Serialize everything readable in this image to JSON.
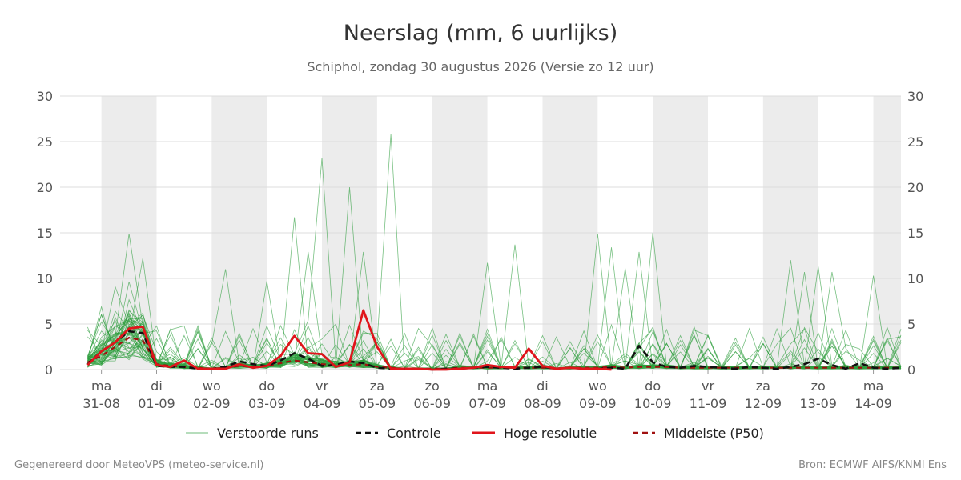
{
  "title": "Neerslag (mm, 6 uurlijks)",
  "subtitle": "Schiphol, zondag 30 augustus 2026 (Versie zo 12 uur)",
  "footer_left": "Gegenereerd door MeteoVPS (meteo-service.nl)",
  "footer_right": "Bron: ECMWF AIFS/KNMI Ens",
  "colors": {
    "ensemble": "#2e9e3e",
    "control": "#111111",
    "hires": "#e0141b",
    "median": "#a01010",
    "shade": "#ececec",
    "grid": "#dddddd"
  },
  "chart_data": {
    "type": "line",
    "x_unit": "days since 31-08 00h (6-hourly steps)",
    "ylim": [
      0,
      30
    ],
    "yticks": [
      0,
      5,
      10,
      15,
      20,
      25,
      30
    ],
    "xlim": [
      -0.75,
      14.5
    ],
    "x_ticks": [
      {
        "day": "ma",
        "date": "31-08"
      },
      {
        "day": "di",
        "date": "01-09"
      },
      {
        "day": "wo",
        "date": "02-09"
      },
      {
        "day": "do",
        "date": "03-09"
      },
      {
        "day": "vr",
        "date": "04-09"
      },
      {
        "day": "za",
        "date": "05-09"
      },
      {
        "day": "zo",
        "date": "06-09"
      },
      {
        "day": "ma",
        "date": "07-09"
      },
      {
        "day": "di",
        "date": "08-09"
      },
      {
        "day": "wo",
        "date": "09-09"
      },
      {
        "day": "do",
        "date": "10-09"
      },
      {
        "day": "vr",
        "date": "11-09"
      },
      {
        "day": "za",
        "date": "12-09"
      },
      {
        "day": "zo",
        "date": "13-09"
      },
      {
        "day": "ma",
        "date": "14-09"
      }
    ],
    "shaded_days": [
      0,
      2,
      4,
      6,
      8,
      10,
      12,
      14
    ],
    "legend": [
      {
        "key": "ensemble",
        "label": "Verstoorde runs",
        "style": "thin"
      },
      {
        "key": "control",
        "label": "Controle",
        "style": "dashed"
      },
      {
        "key": "hires",
        "label": "Hoge resolutie",
        "style": "solid"
      },
      {
        "key": "median",
        "label": "Middelste (P50)",
        "style": "dashed"
      }
    ],
    "series": [
      {
        "name": "Hoge resolutie",
        "key": "hires",
        "x": [
          -0.25,
          0.0,
          0.25,
          0.5,
          0.75,
          1.0,
          1.25,
          1.5,
          1.75,
          2.0,
          2.25,
          2.5,
          2.75,
          3.0,
          3.25,
          3.5,
          3.75,
          4.0,
          4.25,
          4.5,
          4.75,
          5.0,
          5.25,
          5.5
        ],
        "y": [
          0.5,
          2.0,
          3.0,
          4.5,
          4.7,
          0.5,
          0.3,
          1.0,
          0.1,
          0.1,
          0.1,
          0.6,
          0.2,
          0.4,
          1.5,
          3.7,
          1.8,
          1.7,
          0.3,
          0.8,
          6.5,
          2.5,
          0.1,
          0.1
        ]
      },
      {
        "name": "Hoge resolutie (vervolg)",
        "key": "hires",
        "x": [
          5.5,
          5.75,
          6.0,
          6.25,
          6.5,
          6.75,
          7.0,
          7.25,
          7.5,
          7.75,
          8.0,
          8.25,
          8.5,
          8.75,
          9.0,
          9.25
        ],
        "y": [
          0.1,
          0.1,
          0.0,
          0.0,
          0.1,
          0.2,
          0.5,
          0.3,
          0.2,
          2.3,
          0.4,
          0.1,
          0.2,
          0.1,
          0.1,
          0.0
        ]
      },
      {
        "name": "Controle",
        "key": "control",
        "x": [
          -0.25,
          0.0,
          0.25,
          0.5,
          0.75,
          1.0,
          1.25,
          1.5,
          1.75,
          2.0,
          2.25,
          2.5,
          2.75,
          3.0,
          3.25,
          3.5,
          3.75,
          4.0,
          4.25,
          4.5,
          4.75,
          5.0,
          5.25,
          5.5,
          5.75,
          6.0,
          6.25,
          6.5,
          6.75,
          7.0,
          7.25,
          7.5,
          7.75,
          8.0,
          8.25,
          8.5,
          8.75,
          9.0,
          9.25,
          9.5,
          9.75,
          10.0,
          10.25,
          10.5,
          10.75,
          11.0,
          11.25,
          11.5,
          11.75,
          12.0,
          12.25,
          12.5,
          12.75,
          13.0,
          13.25,
          13.5,
          13.75,
          14.0,
          14.25,
          14.5
        ],
        "y": [
          0.6,
          2.0,
          3.0,
          4.2,
          4.0,
          0.4,
          0.3,
          0.3,
          0.1,
          0.1,
          0.3,
          0.9,
          0.6,
          0.4,
          1.0,
          1.8,
          1.2,
          0.4,
          0.5,
          0.9,
          0.7,
          0.2,
          0.1,
          0.1,
          0.1,
          0.0,
          0.1,
          0.1,
          0.2,
          0.3,
          0.2,
          0.1,
          0.2,
          0.3,
          0.1,
          0.2,
          0.1,
          0.1,
          0.2,
          0.1,
          2.6,
          0.8,
          0.3,
          0.2,
          0.4,
          0.3,
          0.2,
          0.1,
          0.3,
          0.2,
          0.1,
          0.3,
          0.6,
          1.2,
          0.5,
          0.1,
          0.7,
          0.2,
          0.1,
          0.2
        ]
      },
      {
        "name": "Middelste (P50)",
        "key": "median",
        "x": [
          -0.25,
          0.0,
          0.25,
          0.5,
          0.75,
          1.0,
          1.25,
          1.5,
          1.75,
          2.0,
          2.25,
          2.5,
          2.75,
          3.0,
          3.25,
          3.5,
          3.75,
          4.0,
          4.25,
          4.5,
          4.75,
          5.0,
          5.25,
          5.5,
          5.75,
          6.0,
          6.25,
          6.5,
          6.75,
          7.0,
          7.25,
          7.5,
          7.75,
          8.0,
          8.25,
          8.5,
          8.75,
          9.0,
          9.25,
          9.5,
          9.75,
          10.0,
          10.25,
          10.5,
          10.75,
          11.0,
          11.25,
          11.5,
          11.75,
          12.0,
          12.25,
          12.5,
          12.75,
          13.0,
          13.25,
          13.5,
          13.75,
          14.0,
          14.25,
          14.5
        ],
        "y": [
          0.8,
          1.5,
          2.5,
          3.5,
          3.2,
          0.6,
          0.4,
          0.3,
          0.2,
          0.1,
          0.2,
          0.4,
          0.3,
          0.4,
          0.7,
          1.0,
          0.8,
          0.6,
          0.5,
          0.5,
          0.6,
          0.3,
          0.2,
          0.1,
          0.1,
          0.1,
          0.1,
          0.2,
          0.2,
          0.2,
          0.2,
          0.2,
          0.2,
          0.2,
          0.1,
          0.2,
          0.2,
          0.2,
          0.3,
          0.2,
          0.3,
          0.3,
          0.3,
          0.2,
          0.2,
          0.2,
          0.2,
          0.2,
          0.2,
          0.2,
          0.2,
          0.2,
          0.2,
          0.2,
          0.2,
          0.2,
          0.2,
          0.2,
          0.2,
          0.2
        ]
      }
    ],
    "ensemble": {
      "name": "Verstoorde runs",
      "x_start": -0.25,
      "x_step": 0.25,
      "peaks": [
        {
          "x": 0.5,
          "y": 14.9
        },
        {
          "x": 0.75,
          "y": 12.2
        },
        {
          "x": 2.25,
          "y": 11.0
        },
        {
          "x": 3.0,
          "y": 9.7
        },
        {
          "x": 3.5,
          "y": 16.7
        },
        {
          "x": 3.75,
          "y": 12.9
        },
        {
          "x": 4.0,
          "y": 23.2
        },
        {
          "x": 4.5,
          "y": 20.0
        },
        {
          "x": 4.75,
          "y": 12.9
        },
        {
          "x": 5.25,
          "y": 25.8
        },
        {
          "x": 7.0,
          "y": 11.7
        },
        {
          "x": 7.5,
          "y": 13.7
        },
        {
          "x": 9.0,
          "y": 14.9
        },
        {
          "x": 9.25,
          "y": 13.4
        },
        {
          "x": 9.5,
          "y": 11.1
        },
        {
          "x": 9.75,
          "y": 12.9
        },
        {
          "x": 10.0,
          "y": 15.0
        },
        {
          "x": 12.5,
          "y": 12.0
        },
        {
          "x": 12.75,
          "y": 10.7
        },
        {
          "x": 13.0,
          "y": 11.3
        },
        {
          "x": 13.25,
          "y": 10.7
        },
        {
          "x": 14.0,
          "y": 10.3
        }
      ]
    }
  }
}
